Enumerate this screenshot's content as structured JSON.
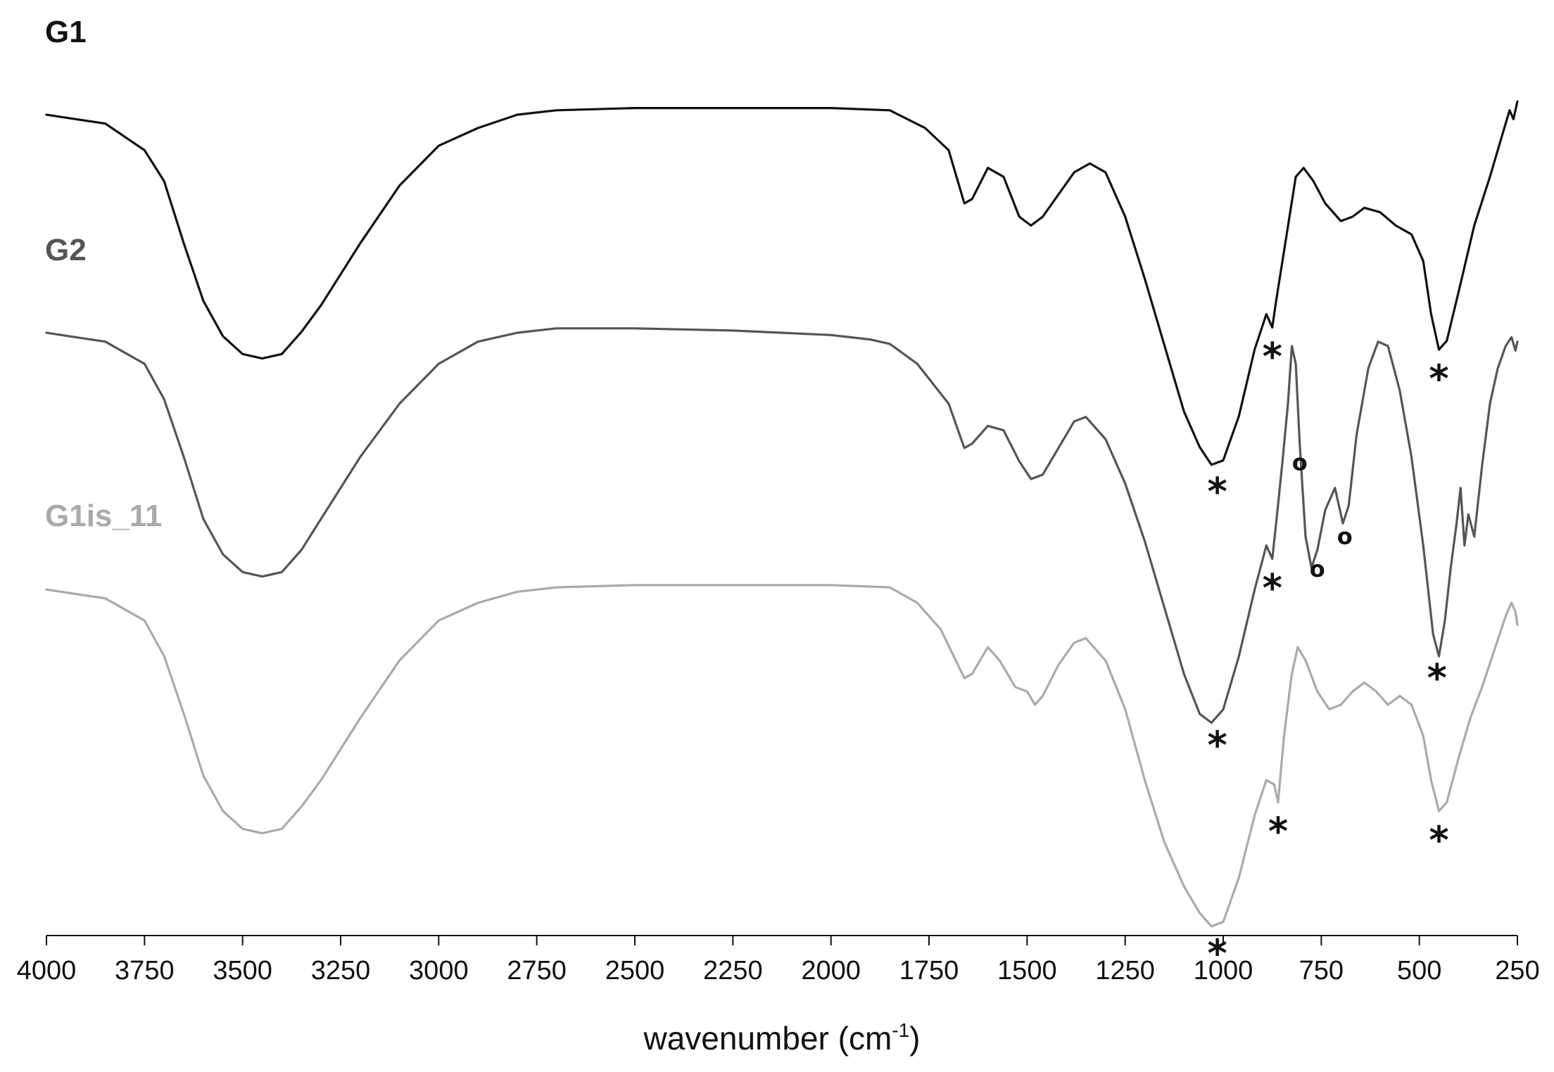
{
  "chart_data": {
    "type": "line",
    "title": "",
    "xlabel": "wavenumber (cm",
    "xlabel_sup": "-1",
    "xlabel_end": ")",
    "ylabel": "",
    "xlim": [
      4000,
      250
    ],
    "x_reversed": true,
    "y_axis_visible": false,
    "grid": false,
    "x_ticks": [
      4000,
      3750,
      3500,
      3250,
      3000,
      2750,
      2500,
      2250,
      2000,
      1750,
      1500,
      1250,
      1000,
      750,
      500,
      250
    ],
    "series": [
      {
        "name": "G1",
        "color": "#111111",
        "points": [
          [
            4000,
            0.63
          ],
          [
            3850,
            0.61
          ],
          [
            3750,
            0.55
          ],
          [
            3700,
            0.48
          ],
          [
            3650,
            0.34
          ],
          [
            3600,
            0.21
          ],
          [
            3550,
            0.13
          ],
          [
            3500,
            0.09
          ],
          [
            3450,
            0.08
          ],
          [
            3400,
            0.09
          ],
          [
            3350,
            0.14
          ],
          [
            3300,
            0.2
          ],
          [
            3250,
            0.27
          ],
          [
            3200,
            0.34
          ],
          [
            3100,
            0.47
          ],
          [
            3000,
            0.56
          ],
          [
            2900,
            0.6
          ],
          [
            2800,
            0.63
          ],
          [
            2700,
            0.64
          ],
          [
            2500,
            0.645
          ],
          [
            2250,
            0.645
          ],
          [
            2000,
            0.645
          ],
          [
            1850,
            0.64
          ],
          [
            1760,
            0.6
          ],
          [
            1700,
            0.55
          ],
          [
            1660,
            0.43
          ],
          [
            1640,
            0.44
          ],
          [
            1600,
            0.51
          ],
          [
            1560,
            0.49
          ],
          [
            1520,
            0.4
          ],
          [
            1490,
            0.38
          ],
          [
            1460,
            0.4
          ],
          [
            1420,
            0.45
          ],
          [
            1380,
            0.5
          ],
          [
            1340,
            0.52
          ],
          [
            1300,
            0.5
          ],
          [
            1250,
            0.4
          ],
          [
            1200,
            0.26
          ],
          [
            1150,
            0.11
          ],
          [
            1100,
            -0.04
          ],
          [
            1060,
            -0.12
          ],
          [
            1030,
            -0.16
          ],
          [
            1000,
            -0.15
          ],
          [
            960,
            -0.05
          ],
          [
            920,
            0.1
          ],
          [
            890,
            0.18
          ],
          [
            875,
            0.15
          ],
          [
            865,
            0.21
          ],
          [
            840,
            0.35
          ],
          [
            815,
            0.49
          ],
          [
            795,
            0.51
          ],
          [
            770,
            0.48
          ],
          [
            740,
            0.43
          ],
          [
            700,
            0.39
          ],
          [
            670,
            0.4
          ],
          [
            640,
            0.42
          ],
          [
            600,
            0.41
          ],
          [
            560,
            0.38
          ],
          [
            520,
            0.36
          ],
          [
            490,
            0.3
          ],
          [
            470,
            0.18
          ],
          [
            450,
            0.1
          ],
          [
            430,
            0.12
          ],
          [
            400,
            0.23
          ],
          [
            360,
            0.38
          ],
          [
            320,
            0.49
          ],
          [
            290,
            0.58
          ],
          [
            270,
            0.64
          ],
          [
            260,
            0.62
          ],
          [
            250,
            0.66
          ]
        ]
      },
      {
        "name": "G2",
        "color": "#555555",
        "points": [
          [
            4000,
            0.63
          ],
          [
            3850,
            0.61
          ],
          [
            3750,
            0.56
          ],
          [
            3700,
            0.48
          ],
          [
            3650,
            0.35
          ],
          [
            3600,
            0.21
          ],
          [
            3550,
            0.13
          ],
          [
            3500,
            0.09
          ],
          [
            3450,
            0.08
          ],
          [
            3400,
            0.09
          ],
          [
            3350,
            0.14
          ],
          [
            3300,
            0.21
          ],
          [
            3250,
            0.28
          ],
          [
            3200,
            0.35
          ],
          [
            3100,
            0.47
          ],
          [
            3000,
            0.56
          ],
          [
            2900,
            0.61
          ],
          [
            2800,
            0.63
          ],
          [
            2700,
            0.64
          ],
          [
            2500,
            0.64
          ],
          [
            2250,
            0.635
          ],
          [
            2000,
            0.625
          ],
          [
            1900,
            0.615
          ],
          [
            1850,
            0.605
          ],
          [
            1780,
            0.56
          ],
          [
            1700,
            0.47
          ],
          [
            1660,
            0.37
          ],
          [
            1640,
            0.38
          ],
          [
            1600,
            0.42
          ],
          [
            1560,
            0.41
          ],
          [
            1520,
            0.34
          ],
          [
            1490,
            0.3
          ],
          [
            1460,
            0.31
          ],
          [
            1420,
            0.37
          ],
          [
            1380,
            0.43
          ],
          [
            1350,
            0.44
          ],
          [
            1300,
            0.39
          ],
          [
            1250,
            0.29
          ],
          [
            1200,
            0.16
          ],
          [
            1150,
            0.01
          ],
          [
            1100,
            -0.14
          ],
          [
            1060,
            -0.23
          ],
          [
            1030,
            -0.25
          ],
          [
            1000,
            -0.22
          ],
          [
            960,
            -0.1
          ],
          [
            920,
            0.05
          ],
          [
            890,
            0.15
          ],
          [
            875,
            0.12
          ],
          [
            865,
            0.2
          ],
          [
            850,
            0.33
          ],
          [
            835,
            0.47
          ],
          [
            825,
            0.6
          ],
          [
            815,
            0.56
          ],
          [
            805,
            0.38
          ],
          [
            790,
            0.17
          ],
          [
            775,
            0.1
          ],
          [
            760,
            0.14
          ],
          [
            740,
            0.23
          ],
          [
            715,
            0.28
          ],
          [
            695,
            0.2
          ],
          [
            680,
            0.24
          ],
          [
            660,
            0.4
          ],
          [
            630,
            0.55
          ],
          [
            605,
            0.61
          ],
          [
            580,
            0.6
          ],
          [
            550,
            0.5
          ],
          [
            520,
            0.35
          ],
          [
            490,
            0.15
          ],
          [
            465,
            -0.05
          ],
          [
            450,
            -0.1
          ],
          [
            435,
            -0.02
          ],
          [
            420,
            0.1
          ],
          [
            405,
            0.2
          ],
          [
            395,
            0.28
          ],
          [
            385,
            0.15
          ],
          [
            375,
            0.22
          ],
          [
            360,
            0.17
          ],
          [
            340,
            0.33
          ],
          [
            320,
            0.47
          ],
          [
            300,
            0.55
          ],
          [
            280,
            0.6
          ],
          [
            265,
            0.62
          ],
          [
            255,
            0.59
          ],
          [
            250,
            0.61
          ]
        ]
      },
      {
        "name": "G1is_11",
        "color": "#aaaaaa",
        "points": [
          [
            4000,
            0.63
          ],
          [
            3850,
            0.61
          ],
          [
            3750,
            0.56
          ],
          [
            3700,
            0.48
          ],
          [
            3650,
            0.35
          ],
          [
            3600,
            0.21
          ],
          [
            3550,
            0.13
          ],
          [
            3500,
            0.09
          ],
          [
            3450,
            0.08
          ],
          [
            3400,
            0.09
          ],
          [
            3350,
            0.14
          ],
          [
            3300,
            0.2
          ],
          [
            3250,
            0.27
          ],
          [
            3200,
            0.34
          ],
          [
            3100,
            0.47
          ],
          [
            3000,
            0.56
          ],
          [
            2900,
            0.6
          ],
          [
            2800,
            0.625
          ],
          [
            2700,
            0.635
          ],
          [
            2500,
            0.64
          ],
          [
            2250,
            0.64
          ],
          [
            2000,
            0.64
          ],
          [
            1850,
            0.635
          ],
          [
            1780,
            0.6
          ],
          [
            1720,
            0.54
          ],
          [
            1660,
            0.43
          ],
          [
            1640,
            0.44
          ],
          [
            1600,
            0.5
          ],
          [
            1570,
            0.47
          ],
          [
            1530,
            0.41
          ],
          [
            1500,
            0.4
          ],
          [
            1480,
            0.37
          ],
          [
            1460,
            0.39
          ],
          [
            1420,
            0.46
          ],
          [
            1380,
            0.51
          ],
          [
            1350,
            0.52
          ],
          [
            1300,
            0.47
          ],
          [
            1250,
            0.36
          ],
          [
            1200,
            0.2
          ],
          [
            1150,
            0.06
          ],
          [
            1100,
            -0.04
          ],
          [
            1060,
            -0.1
          ],
          [
            1030,
            -0.13
          ],
          [
            1000,
            -0.12
          ],
          [
            960,
            -0.02
          ],
          [
            920,
            0.12
          ],
          [
            890,
            0.2
          ],
          [
            870,
            0.19
          ],
          [
            860,
            0.15
          ],
          [
            845,
            0.3
          ],
          [
            825,
            0.44
          ],
          [
            810,
            0.5
          ],
          [
            790,
            0.47
          ],
          [
            760,
            0.4
          ],
          [
            730,
            0.36
          ],
          [
            700,
            0.37
          ],
          [
            670,
            0.4
          ],
          [
            640,
            0.42
          ],
          [
            610,
            0.4
          ],
          [
            580,
            0.37
          ],
          [
            550,
            0.39
          ],
          [
            520,
            0.37
          ],
          [
            490,
            0.3
          ],
          [
            470,
            0.2
          ],
          [
            450,
            0.13
          ],
          [
            430,
            0.15
          ],
          [
            400,
            0.25
          ],
          [
            370,
            0.34
          ],
          [
            340,
            0.41
          ],
          [
            310,
            0.49
          ],
          [
            280,
            0.57
          ],
          [
            265,
            0.6
          ],
          [
            255,
            0.58
          ],
          [
            250,
            0.55
          ]
        ]
      }
    ],
    "markers": [
      {
        "series": "G1",
        "symbol": "*",
        "x": 875,
        "at": "below"
      },
      {
        "series": "G1",
        "symbol": "*",
        "x": 1015,
        "at": "below"
      },
      {
        "series": "G1",
        "symbol": "*",
        "x": 450,
        "at": "below"
      },
      {
        "series": "G2",
        "symbol": "*",
        "x": 875,
        "at": "below"
      },
      {
        "series": "G2",
        "symbol": "o",
        "x": 805,
        "at": "below"
      },
      {
        "series": "G2",
        "symbol": "o",
        "x": 760,
        "at": "below"
      },
      {
        "series": "G2",
        "symbol": "o",
        "x": 690,
        "at": "below"
      },
      {
        "series": "G2",
        "symbol": "*",
        "x": 1015,
        "at": "below"
      },
      {
        "series": "G2",
        "symbol": "*",
        "x": 455,
        "at": "below"
      },
      {
        "series": "G1is_11",
        "symbol": "*",
        "x": 860,
        "at": "below"
      },
      {
        "series": "G1is_11",
        "symbol": "*",
        "x": 450,
        "at": "below"
      },
      {
        "series": "G1is_11",
        "symbol": "*",
        "x": 1015,
        "at": "below"
      }
    ]
  }
}
